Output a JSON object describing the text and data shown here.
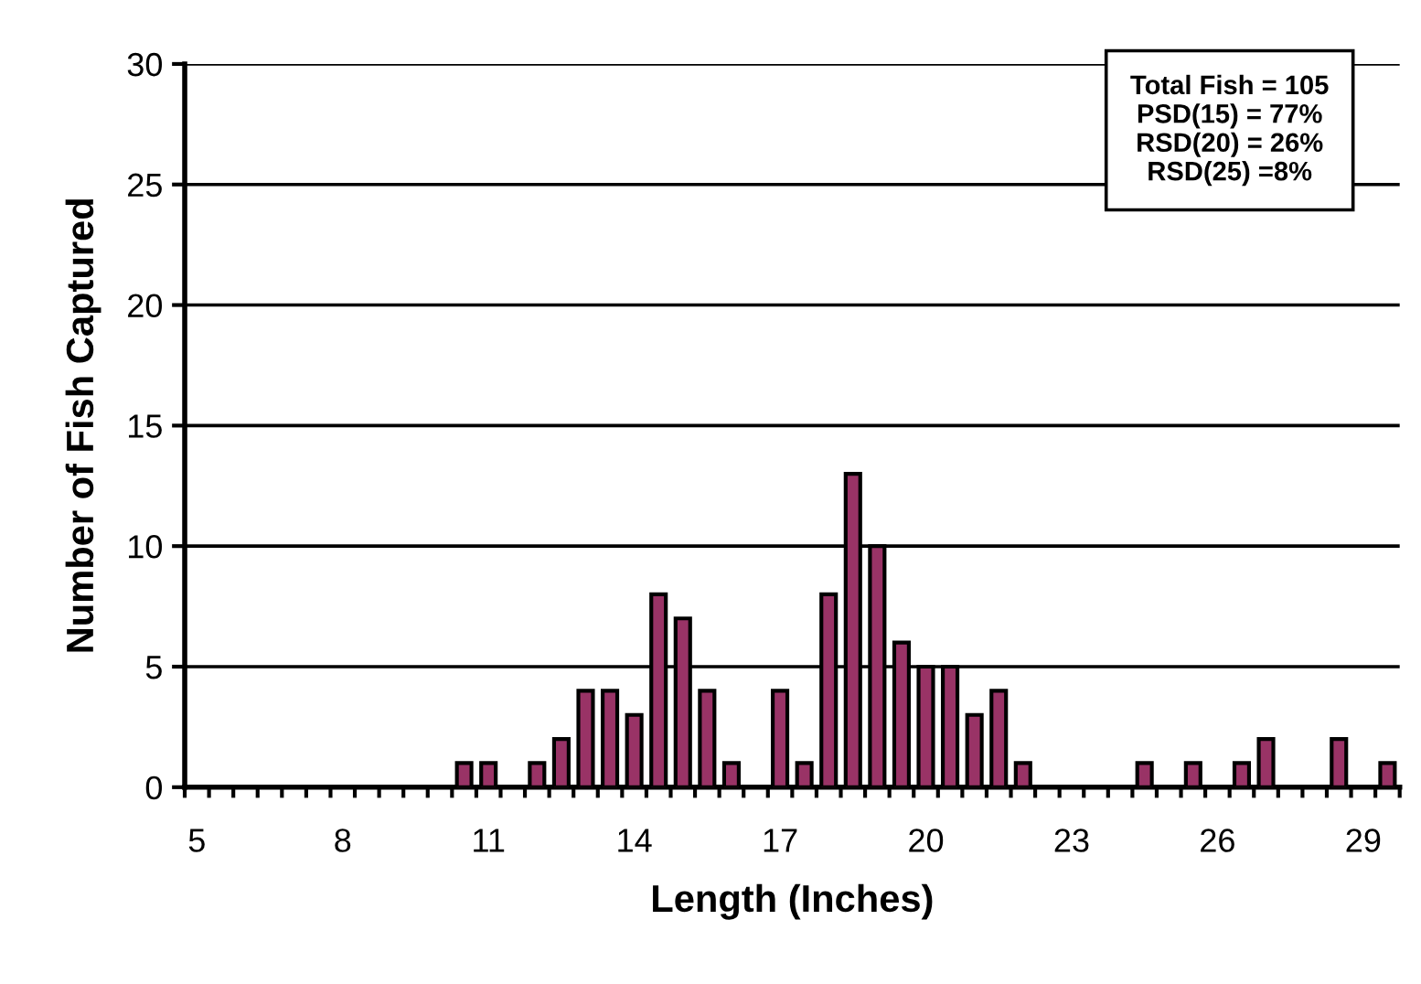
{
  "chart_data": {
    "type": "bar",
    "xlabel": "Length (Inches)",
    "ylabel": "Number of Fish Captured",
    "categories": [
      "5",
      null,
      null,
      null,
      null,
      null,
      "8",
      null,
      null,
      null,
      null,
      null,
      "11",
      null,
      null,
      null,
      null,
      null,
      "14",
      null,
      null,
      null,
      null,
      null,
      "17",
      null,
      null,
      null,
      null,
      null,
      "20",
      null,
      null,
      null,
      null,
      null,
      "23",
      null,
      null,
      null,
      null,
      null,
      "26",
      null,
      null,
      null,
      null,
      null,
      "29",
      null
    ],
    "values": [
      0,
      0,
      0,
      0,
      0,
      0,
      0,
      0,
      0,
      0,
      0,
      1,
      1,
      0,
      1,
      2,
      4,
      4,
      3,
      8,
      7,
      4,
      1,
      0,
      4,
      1,
      8,
      13,
      10,
      6,
      5,
      5,
      3,
      4,
      1,
      0,
      0,
      0,
      0,
      1,
      0,
      1,
      0,
      1,
      2,
      0,
      0,
      2,
      0,
      1
    ],
    "color": "#993366",
    "ylim": [
      0,
      30
    ],
    "yticks": [
      0,
      5,
      10,
      15,
      20,
      25,
      30
    ],
    "grid": "y",
    "legend": false,
    "annotations": [
      "Total Fish = 105\nPSD(15) = 77%\nRSD(20) = 26%\nRSD(25) =8%"
    ]
  }
}
